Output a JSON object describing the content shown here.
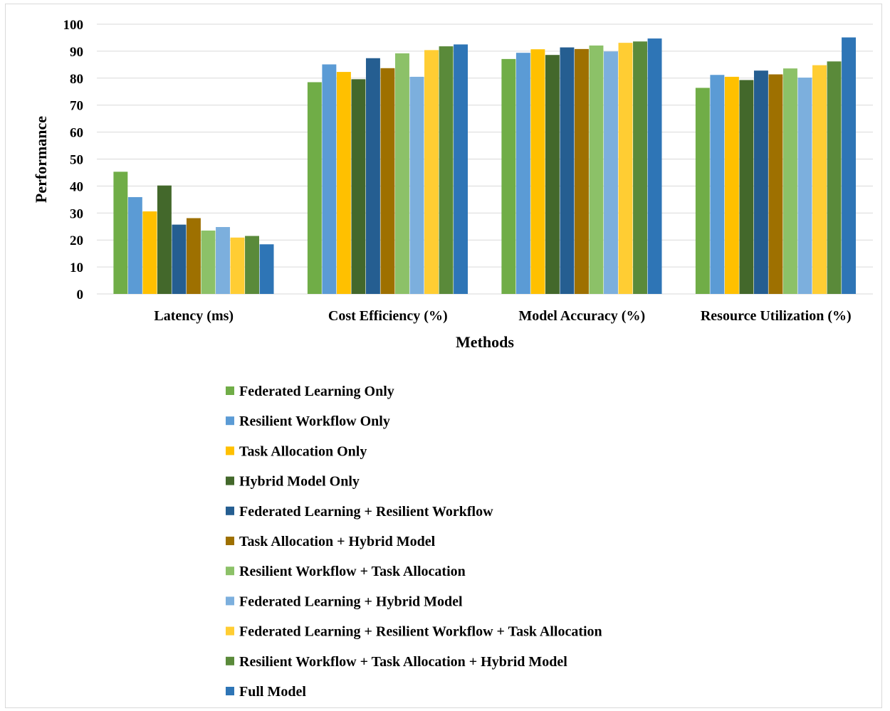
{
  "chart_data": {
    "type": "bar",
    "xlabel": "Methods",
    "ylabel": "Performance",
    "ylim": [
      0,
      100
    ],
    "yticks": [
      0,
      10,
      20,
      30,
      40,
      50,
      60,
      70,
      80,
      90,
      100
    ],
    "grid": true,
    "legend_position": "bottom",
    "categories": [
      "Latency (ms)",
      "Cost Efficiency (%)",
      "Model Accuracy (%)",
      "Resource Utilization (%)"
    ],
    "series": [
      {
        "name": "Federated Learning Only",
        "color": "#70ad47",
        "values": [
          45.3,
          78.5,
          87.1,
          76.4
        ]
      },
      {
        "name": "Resilient Workflow Only",
        "color": "#5b9bd5",
        "values": [
          35.9,
          85.1,
          89.4,
          81.2
        ]
      },
      {
        "name": "Task Allocation Only",
        "color": "#ffc000",
        "values": [
          30.6,
          82.3,
          90.7,
          80.5
        ]
      },
      {
        "name": "Hybrid Model Only",
        "color": "#43682b",
        "values": [
          40.2,
          79.6,
          88.6,
          79.3
        ]
      },
      {
        "name": "Federated Learning + Resilient Workflow",
        "color": "#255e91",
        "values": [
          25.7,
          87.4,
          91.4,
          82.8
        ]
      },
      {
        "name": "Task Allocation + Hybrid Model",
        "color": "#9e7000",
        "values": [
          28.1,
          83.7,
          90.8,
          81.4
        ]
      },
      {
        "name": "Resilient Workflow + Task Allocation",
        "color": "#8cc168",
        "values": [
          23.5,
          89.2,
          92.1,
          83.6
        ]
      },
      {
        "name": "Federated Learning + Hybrid Model",
        "color": "#7cafdd",
        "values": [
          24.8,
          80.5,
          89.9,
          80.2
        ]
      },
      {
        "name": "Federated Learning + Resilient Workflow + Task Allocation",
        "color": "#ffcd33",
        "values": [
          20.9,
          90.4,
          93.1,
          84.8
        ]
      },
      {
        "name": "Resilient Workflow + Task Allocation + Hybrid Model",
        "color": "#5a8a3a",
        "values": [
          21.5,
          91.8,
          93.6,
          86.2
        ]
      },
      {
        "name": "Full Model",
        "color": "#2e75b6",
        "values": [
          18.4,
          92.5,
          94.7,
          95.1
        ]
      }
    ]
  }
}
